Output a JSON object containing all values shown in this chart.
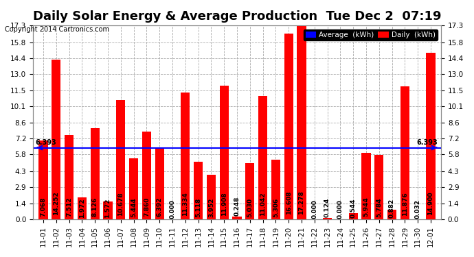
{
  "title": "Daily Solar Energy & Average Production  Tue Dec 2  07:19",
  "copyright": "Copyright 2014 Cartronics.com",
  "categories": [
    "11-01",
    "11-02",
    "11-03",
    "11-04",
    "11-05",
    "11-06",
    "11-07",
    "11-08",
    "11-09",
    "11-10",
    "11-11",
    "11-12",
    "11-13",
    "11-14",
    "11-15",
    "11-16",
    "11-17",
    "11-18",
    "11-19",
    "11-20",
    "11-21",
    "11-22",
    "11-23",
    "11-24",
    "11-25",
    "11-26",
    "11-27",
    "11-28",
    "11-29",
    "11-30",
    "12-01"
  ],
  "values": [
    7.068,
    14.252,
    7.512,
    1.972,
    8.126,
    1.572,
    10.678,
    5.444,
    7.86,
    6.392,
    0.0,
    11.334,
    5.118,
    3.952,
    11.908,
    0.248,
    5.03,
    11.042,
    5.306,
    16.608,
    17.278,
    0.0,
    0.124,
    0.0,
    0.544,
    5.944,
    5.784,
    0.882,
    11.876,
    0.032,
    14.9
  ],
  "average": 6.393,
  "bar_color": "#ff0000",
  "avg_line_color": "#0000ff",
  "background_color": "#ffffff",
  "grid_color": "#aaaaaa",
  "ylim": [
    0.0,
    17.3
  ],
  "yticks": [
    0.0,
    1.4,
    2.9,
    4.3,
    5.8,
    7.2,
    8.6,
    10.1,
    11.5,
    13.0,
    14.4,
    15.8,
    17.3
  ],
  "legend_avg_bg": "#0000ff",
  "legend_daily_bg": "#ff0000",
  "legend_text_color": "#ffffff",
  "avg_label": "6.393",
  "title_fontsize": 13,
  "bar_value_fontsize": 6.5,
  "tick_fontsize": 7.5
}
